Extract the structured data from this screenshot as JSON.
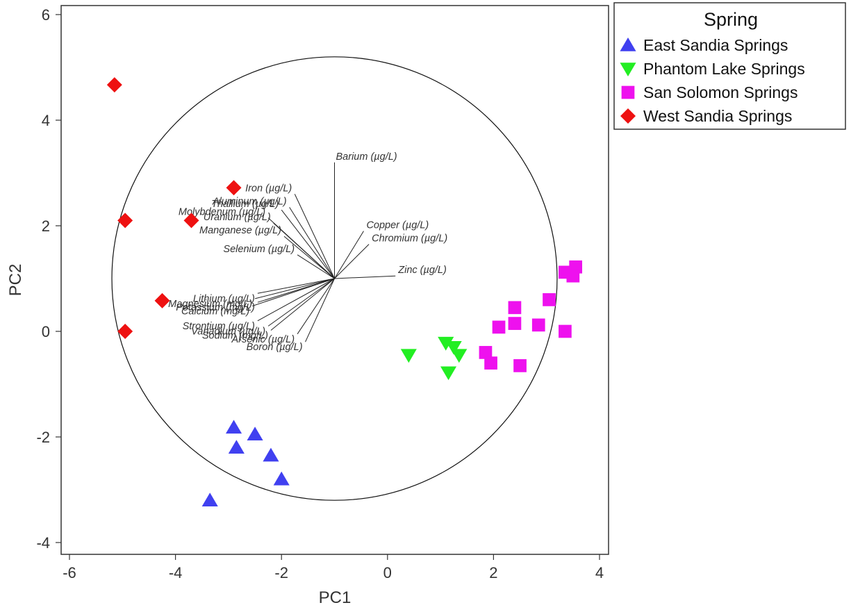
{
  "chart_data": {
    "type": "scatter",
    "title": "",
    "xlabel": "PC1",
    "ylabel": "PC2",
    "xlim": [
      -6.3,
      4.3
    ],
    "ylim": [
      -4.2,
      6.2
    ],
    "xticks": [
      -6,
      -4,
      -2,
      0,
      2,
      4
    ],
    "yticks": [
      -4,
      -2,
      0,
      2,
      4,
      6
    ],
    "grid": false,
    "legend": {
      "title": "Spring",
      "placement": "outside-top-right"
    },
    "circle": {
      "center": [
        -1.0,
        1.0
      ],
      "radius": 4.2
    },
    "loadings": {
      "origin": [
        -1.0,
        1.0
      ],
      "vectors": [
        {
          "name": "Barium (µg/L)",
          "end": [
            -1.0,
            3.2
          ]
        },
        {
          "name": "Iron (µg/L)",
          "end": [
            -1.75,
            2.6
          ]
        },
        {
          "name": "Aluminum (µg/L)",
          "end": [
            -1.85,
            2.35
          ]
        },
        {
          "name": "Thallium (µg/L)",
          "end": [
            -2.0,
            2.3
          ]
        },
        {
          "name": "Molybdenum (µg/L)",
          "end": [
            -2.25,
            2.15
          ]
        },
        {
          "name": "Uranium (µg/L)",
          "end": [
            -2.15,
            2.05
          ]
        },
        {
          "name": "Manganese (µg/L)",
          "end": [
            -1.95,
            1.8
          ]
        },
        {
          "name": "Selenium (µg/L)",
          "end": [
            -1.7,
            1.45
          ]
        },
        {
          "name": "Copper (µg/L)",
          "end": [
            -0.45,
            1.9
          ]
        },
        {
          "name": "Chromium (µg/L)",
          "end": [
            -0.35,
            1.65
          ]
        },
        {
          "name": "Zinc (µg/L)",
          "end": [
            0.15,
            1.05
          ]
        },
        {
          "name": "Lithium (µg/L)",
          "end": [
            -2.45,
            0.72
          ]
        },
        {
          "name": "Magnesium (mg/L)",
          "end": [
            -2.5,
            0.62
          ]
        },
        {
          "name": "Potassium (mg/L)",
          "end": [
            -2.45,
            0.55
          ]
        },
        {
          "name": "Calcium (mg/L)",
          "end": [
            -2.55,
            0.48
          ]
        },
        {
          "name": "Strontium (µg/L)",
          "end": [
            -2.45,
            0.2
          ]
        },
        {
          "name": "Vanadium (µg/L)",
          "end": [
            -2.25,
            0.1
          ]
        },
        {
          "name": "Sodium (mg/L)",
          "end": [
            -2.2,
            0.02
          ]
        },
        {
          "name": "Arsenic (µg/L)",
          "end": [
            -1.7,
            -0.05
          ]
        },
        {
          "name": "Boron (µg/L)",
          "end": [
            -1.55,
            -0.2
          ]
        }
      ]
    },
    "series": [
      {
        "name": "East Sandia Springs",
        "marker": "triangle-up",
        "color": "#4040f0",
        "points": [
          [
            -2.9,
            -1.82
          ],
          [
            -2.5,
            -1.95
          ],
          [
            -2.85,
            -2.2
          ],
          [
            -2.2,
            -2.35
          ],
          [
            -2.0,
            -2.8
          ],
          [
            -3.35,
            -3.2
          ]
        ]
      },
      {
        "name": "Phantom Lake Springs",
        "marker": "triangle-down",
        "color": "#22ee22",
        "points": [
          [
            0.4,
            -0.45
          ],
          [
            1.1,
            -0.22
          ],
          [
            1.25,
            -0.3
          ],
          [
            1.35,
            -0.45
          ],
          [
            1.15,
            -0.78
          ]
        ]
      },
      {
        "name": "San Solomon Springs",
        "marker": "square",
        "color": "#ee11ee",
        "points": [
          [
            3.55,
            1.22
          ],
          [
            3.35,
            1.12
          ],
          [
            3.5,
            1.05
          ],
          [
            3.05,
            0.6
          ],
          [
            2.4,
            0.45
          ],
          [
            2.4,
            0.15
          ],
          [
            2.85,
            0.12
          ],
          [
            2.1,
            0.08
          ],
          [
            3.35,
            0.0
          ],
          [
            1.85,
            -0.4
          ],
          [
            1.95,
            -0.6
          ],
          [
            2.5,
            -0.65
          ]
        ]
      },
      {
        "name": "West Sandia Springs",
        "marker": "diamond",
        "color": "#ee1111",
        "points": [
          [
            -5.15,
            4.67
          ],
          [
            -2.9,
            2.72
          ],
          [
            -4.95,
            2.1
          ],
          [
            -3.7,
            2.1
          ],
          [
            -4.25,
            0.58
          ],
          [
            -4.95,
            0.0
          ]
        ]
      }
    ]
  }
}
